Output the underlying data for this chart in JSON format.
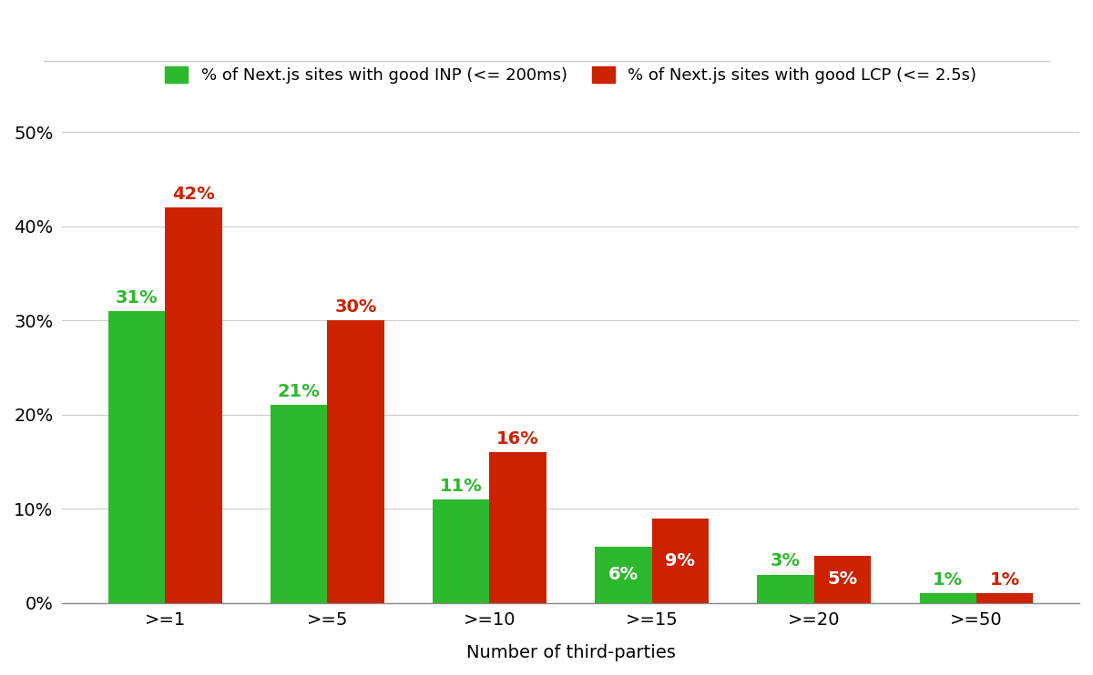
{
  "categories": [
    ">=1",
    ">=5",
    ">=10",
    ">=15",
    ">=20",
    ">=50"
  ],
  "inp_values": [
    31,
    21,
    11,
    6,
    3,
    1
  ],
  "lcp_values": [
    42,
    30,
    16,
    9,
    5,
    1
  ],
  "inp_color": "#2db92d",
  "lcp_color": "#cc2200",
  "inp_label": "% of Next.js sites with good INP (<= 200ms)",
  "lcp_label": "% of Next.js sites with good LCP (<= 2.5s)",
  "xlabel": "Number of third-parties",
  "ylim": [
    0,
    52
  ],
  "yticks": [
    0,
    10,
    20,
    30,
    40,
    50
  ],
  "background_color": "#ffffff",
  "grid_color": "#cccccc",
  "bar_width": 0.35,
  "label_fontsize": 14,
  "tick_fontsize": 14,
  "annotation_fontsize": 14,
  "legend_fontsize": 13,
  "inp_inside": [
    6
  ],
  "lcp_inside": [
    9,
    5
  ]
}
